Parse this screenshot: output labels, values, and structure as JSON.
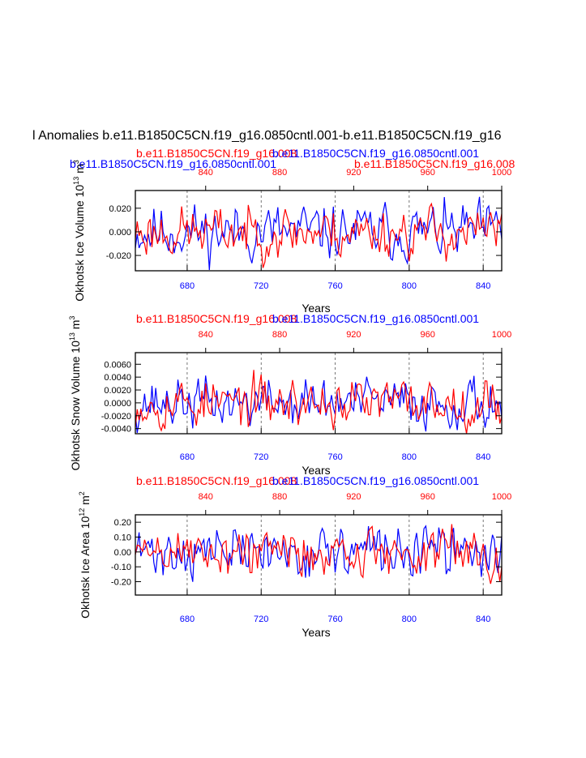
{
  "figure": {
    "title": "l Anomalies b.e11.B1850C5CN.f19_g16.0850cntl.001-b.e11.B1850C5CN.f19_g16",
    "colors": {
      "case1": "#0000ff",
      "case2": "#ff0000",
      "axis": "#000000",
      "grid": "#555555"
    }
  },
  "chart_data": [
    {
      "type": "line",
      "ylabel": "Okhotsk Ice Volume 10",
      "ylabel_exp": "13",
      "ylabel_unit": " m",
      "ylabel_unit_exp": "3",
      "xlabel": "Years",
      "ylim": [
        -0.033,
        0.035
      ],
      "yticks": [
        -0.02,
        0.0,
        0.02
      ],
      "ytick_labels": [
        "-0.020",
        "0.000",
        "0.020"
      ],
      "bottom_axis": {
        "range": [
          652,
          850
        ],
        "ticks": [
          680,
          720,
          760,
          800,
          840
        ],
        "color": "#0000ff"
      },
      "top_axis": {
        "range": [
          802,
          1000
        ],
        "ticks": [
          840,
          880,
          920,
          960,
          1000
        ],
        "color": "#ff0000"
      },
      "top_title_left": "b.e11.B1850C5CN.f19_g16.0850cntl.001",
      "top_title_red_a": "b.e11.B1850C5CN.f19_g16.008",
      "top_title_blue_a": "b.e11.B1850C5CN.f19_g16.0850cntl.001",
      "top_title_exp": "13",
      "top_title_unit": "m",
      "top_title_unit_exp": "3",
      "top_title_red_b": "b.e11.B1850C5CN.f19_g16.008",
      "vgrid_years": [
        680,
        720,
        760,
        800,
        840
      ],
      "series": [
        {
          "name": "b.e11.B1850C5CN.f19_g16.0850cntl.001",
          "color": "#0000ff",
          "amplitude": 0.011,
          "seed": 11
        },
        {
          "name": "b.e11.B1850C5CN.f19_g16.008",
          "color": "#ff0000",
          "amplitude": 0.01,
          "seed": 23
        }
      ]
    },
    {
      "type": "line",
      "ylabel": "Okhotsk Snow Volume 10",
      "ylabel_exp": "13",
      "ylabel_unit": " m",
      "ylabel_unit_exp": "3",
      "xlabel": "Years",
      "ylim": [
        -0.0048,
        0.0078
      ],
      "yticks": [
        -0.004,
        -0.002,
        0.0,
        0.002,
        0.004,
        0.006
      ],
      "ytick_labels": [
        "-0.0040",
        "-0.0020",
        "0.0000",
        "0.0020",
        "0.0040",
        "0.0060"
      ],
      "bottom_axis": {
        "range": [
          652,
          850
        ],
        "ticks": [
          680,
          720,
          760,
          800,
          840
        ],
        "color": "#0000ff"
      },
      "top_axis": {
        "range": [
          802,
          1000
        ],
        "ticks": [
          840,
          880,
          920,
          960,
          1000
        ],
        "color": "#ff0000"
      },
      "top_title_left": "b.e11.B1850C5CN.f19_g16.0850cntl.001",
      "top_title_red_a": "b.e11.B1850C5CN.f19_g16.008",
      "top_title_blue_a": "b.e11.B1850C5CN.f19_g16.0850cntl.001",
      "vgrid_years": [
        680,
        720,
        760,
        800,
        840
      ],
      "series": [
        {
          "name": "b.e11.B1850C5CN.f19_g16.0850cntl.001",
          "color": "#0000ff",
          "amplitude": 0.0018,
          "seed": 37
        },
        {
          "name": "b.e11.B1850C5CN.f19_g16.008",
          "color": "#ff0000",
          "amplitude": 0.0018,
          "seed": 53
        }
      ]
    },
    {
      "type": "line",
      "ylabel": "Okhotsk Ice Area 10",
      "ylabel_exp": "12",
      "ylabel_unit": " m",
      "ylabel_unit_exp": "2",
      "xlabel": "Years",
      "ylim": [
        -0.29,
        0.25
      ],
      "yticks": [
        -0.2,
        -0.1,
        0.0,
        0.1,
        0.2
      ],
      "ytick_labels": [
        "-0.20",
        "-0.10",
        "0.00",
        "0.10",
        "0.20"
      ],
      "bottom_axis": {
        "range": [
          652,
          850
        ],
        "ticks": [
          680,
          720,
          760,
          800,
          840
        ],
        "color": "#0000ff"
      },
      "top_axis": {
        "range": [
          802,
          1000
        ],
        "ticks": [
          840,
          880,
          920,
          960,
          1000
        ],
        "color": "#ff0000"
      },
      "top_title_left": "b.e11.B1850C5CN.f19_g16.0850cntl.001",
      "top_title_red_a": "b.e11.B1850C5CN.f19_g16.008",
      "top_title_blue_a": "b.e11.B1850C5CN.f19_g16.0850cntl.001",
      "vgrid_years": [
        680,
        720,
        760,
        800,
        840
      ],
      "series": [
        {
          "name": "b.e11.B1850C5CN.f19_g16.0850cntl.001",
          "color": "#0000ff",
          "amplitude": 0.08,
          "seed": 71
        },
        {
          "name": "b.e11.B1850C5CN.f19_g16.008",
          "color": "#ff0000",
          "amplitude": 0.08,
          "seed": 89
        }
      ]
    }
  ]
}
